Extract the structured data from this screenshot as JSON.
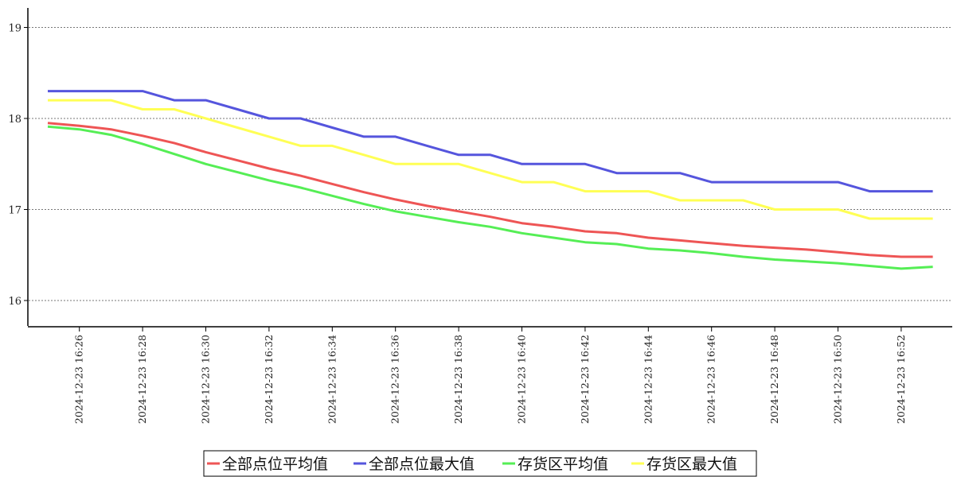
{
  "chart_data": {
    "type": "line",
    "title": "",
    "xlabel": "",
    "ylabel": "",
    "ylim": [
      15.7,
      19.2
    ],
    "yticks": [
      16,
      17,
      18,
      19
    ],
    "grid": "horizontal dashed",
    "legend_position": "bottom-center",
    "x": [
      "2024-12-23 16:25",
      "2024-12-23 16:26",
      "2024-12-23 16:27",
      "2024-12-23 16:28",
      "2024-12-23 16:29",
      "2024-12-23 16:30",
      "2024-12-23 16:31",
      "2024-12-23 16:32",
      "2024-12-23 16:33",
      "2024-12-23 16:34",
      "2024-12-23 16:35",
      "2024-12-23 16:36",
      "2024-12-23 16:37",
      "2024-12-23 16:38",
      "2024-12-23 16:39",
      "2024-12-23 16:40",
      "2024-12-23 16:41",
      "2024-12-23 16:42",
      "2024-12-23 16:43",
      "2024-12-23 16:44",
      "2024-12-23 16:45",
      "2024-12-23 16:46",
      "2024-12-23 16:47",
      "2024-12-23 16:48",
      "2024-12-23 16:49",
      "2024-12-23 16:50",
      "2024-12-23 16:51",
      "2024-12-23 16:52",
      "2024-12-23 16:53"
    ],
    "xtick_labels": [
      "2024-12-23 16:26",
      "2024-12-23 16:28",
      "2024-12-23 16:30",
      "2024-12-23 16:32",
      "2024-12-23 16:34",
      "2024-12-23 16:36",
      "2024-12-23 16:38",
      "2024-12-23 16:40",
      "2024-12-23 16:42",
      "2024-12-23 16:44",
      "2024-12-23 16:46",
      "2024-12-23 16:48",
      "2024-12-23 16:50",
      "2024-12-23 16:52"
    ],
    "series": [
      {
        "name": "全部点位平均值",
        "color": "#ee5555",
        "values": [
          17.95,
          17.92,
          17.88,
          17.81,
          17.73,
          17.63,
          17.54,
          17.45,
          17.37,
          17.28,
          17.19,
          17.11,
          17.04,
          16.98,
          16.92,
          16.85,
          16.81,
          16.76,
          16.74,
          16.69,
          16.66,
          16.63,
          16.6,
          16.58,
          16.56,
          16.53,
          16.5,
          16.48,
          16.48
        ]
      },
      {
        "name": "全部点位最大值",
        "color": "#5555dd",
        "values": [
          18.3,
          18.3,
          18.3,
          18.3,
          18.2,
          18.2,
          18.1,
          18.0,
          18.0,
          17.9,
          17.8,
          17.8,
          17.7,
          17.6,
          17.6,
          17.5,
          17.5,
          17.5,
          17.4,
          17.4,
          17.4,
          17.3,
          17.3,
          17.3,
          17.3,
          17.3,
          17.2,
          17.2,
          17.2
        ]
      },
      {
        "name": "存货区平均值",
        "color": "#55ee55",
        "values": [
          17.91,
          17.88,
          17.82,
          17.72,
          17.61,
          17.5,
          17.41,
          17.32,
          17.24,
          17.15,
          17.06,
          16.98,
          16.92,
          16.86,
          16.81,
          16.74,
          16.69,
          16.64,
          16.62,
          16.57,
          16.55,
          16.52,
          16.48,
          16.45,
          16.43,
          16.41,
          16.38,
          16.35,
          16.37
        ]
      },
      {
        "name": "存货区最大值",
        "color": "#ffff55",
        "values": [
          18.2,
          18.2,
          18.2,
          18.1,
          18.1,
          18.0,
          17.9,
          17.8,
          17.7,
          17.7,
          17.6,
          17.5,
          17.5,
          17.5,
          17.4,
          17.3,
          17.3,
          17.2,
          17.2,
          17.2,
          17.1,
          17.1,
          17.1,
          17.0,
          17.0,
          17.0,
          16.9,
          16.9,
          16.9
        ]
      }
    ]
  }
}
